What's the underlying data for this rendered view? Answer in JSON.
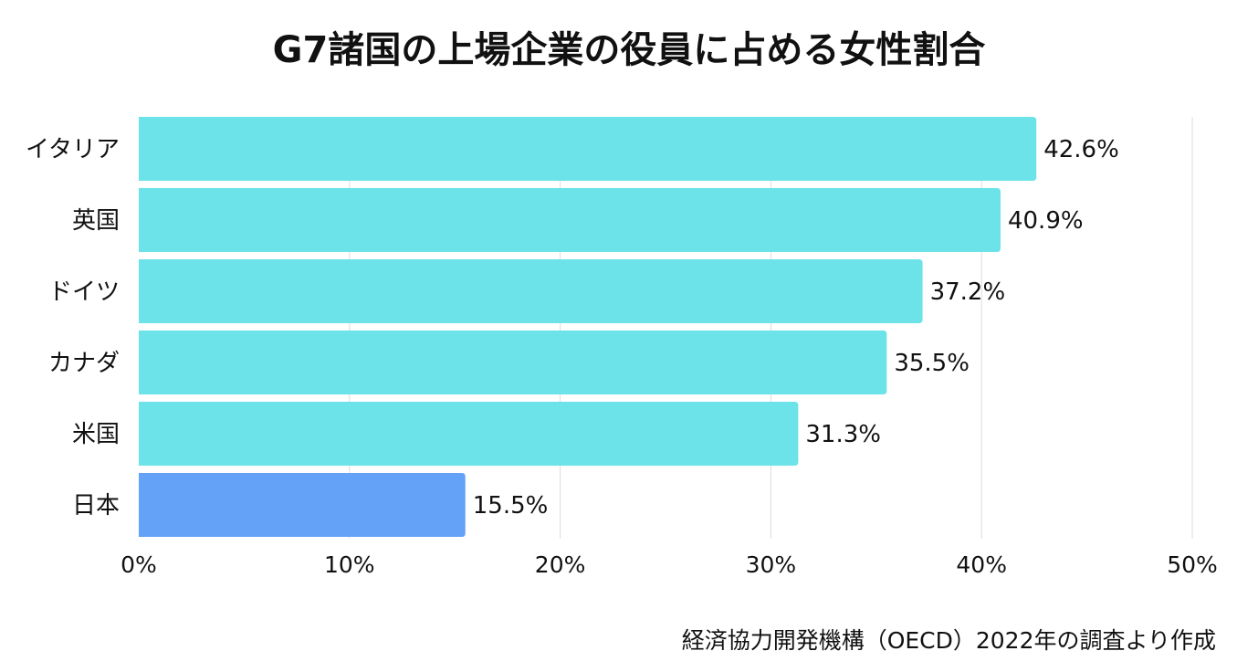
{
  "chart_data": {
    "type": "bar",
    "orientation": "horizontal",
    "title": "G7諸国の上場企業の役員に占める女性割合",
    "categories": [
      "イタリア",
      "英国",
      "ドイツ",
      "カナダ",
      "米国",
      "日本"
    ],
    "values": [
      42.6,
      40.9,
      37.2,
      35.5,
      31.3,
      15.5
    ],
    "value_labels": [
      "42.6%",
      "40.9%",
      "37.2%",
      "35.5%",
      "31.3%",
      "15.5%"
    ],
    "xlim": [
      0,
      50
    ],
    "x_ticks": [
      0,
      10,
      20,
      30,
      40,
      50
    ],
    "x_tick_labels": [
      "0%",
      "10%",
      "20%",
      "30%",
      "40%",
      "50%"
    ],
    "xlabel": "",
    "ylabel": "",
    "grid": true,
    "colors": {
      "default": "#6BE3E8",
      "highlight": "#64A2F7"
    },
    "highlight_category": "日本",
    "source": "経済協力開発機構（OECD）2022年の調査より作成"
  }
}
